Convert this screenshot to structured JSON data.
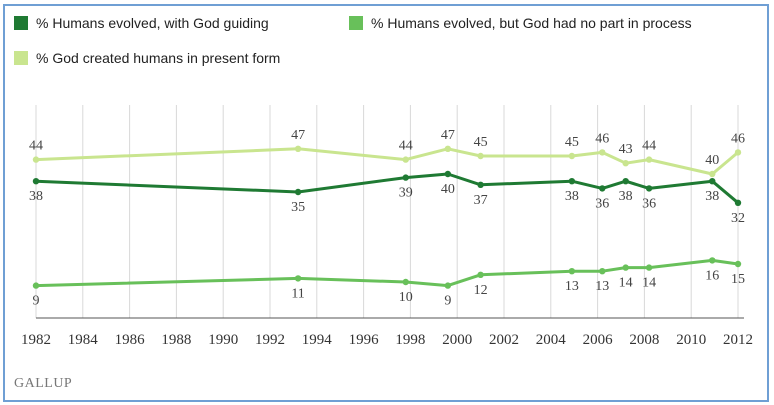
{
  "brand": "GALLUP",
  "colors": {
    "guided": "#1f7a33",
    "no_god": "#68c05a",
    "created": "#c9e58f",
    "grid": "#d8d8d8",
    "axis": "#555555"
  },
  "chart_data": {
    "type": "line",
    "x_ticks": [
      1982,
      1984,
      1986,
      1988,
      1990,
      1992,
      1994,
      1996,
      1998,
      2000,
      2002,
      2004,
      2006,
      2008,
      2010,
      2012
    ],
    "xlim": [
      1982,
      2012
    ],
    "ylim": [
      0,
      55
    ],
    "grid": "vertical",
    "legend_position": "top",
    "series": [
      {
        "name": "% Humans evolved, with God guiding",
        "color": "#1f7a33",
        "x": [
          1982,
          1993.2,
          1997.8,
          1999.6,
          2001,
          2004.9,
          2006.2,
          2007.2,
          2008.2,
          2010.9,
          2012
        ],
        "values": [
          38,
          35,
          39,
          40,
          37,
          38,
          36,
          38,
          36,
          38,
          32
        ],
        "labels": [
          "38",
          "35",
          "39",
          "40",
          "37",
          "38",
          "36",
          "38",
          "36",
          "38",
          "32"
        ],
        "label_pos": [
          "below",
          "below",
          "below",
          "below",
          "below",
          "below",
          "below",
          "below",
          "below",
          "below",
          "below"
        ]
      },
      {
        "name": "% Humans evolved, but God had no part in process",
        "color": "#68c05a",
        "x": [
          1982,
          1993.2,
          1997.8,
          1999.6,
          2001,
          2004.9,
          2006.2,
          2007.2,
          2008.2,
          2010.9,
          2012
        ],
        "values": [
          9,
          11,
          10,
          9,
          12,
          13,
          13,
          14,
          14,
          16,
          15
        ],
        "labels": [
          "9",
          "11",
          "10",
          "9",
          "12",
          "13",
          "13",
          "14",
          "14",
          "16",
          "15"
        ],
        "label_pos": [
          "below",
          "below",
          "below",
          "below",
          "below",
          "below",
          "below",
          "below",
          "below",
          "below",
          "below"
        ]
      },
      {
        "name": "% God created humans in present form",
        "color": "#c9e58f",
        "x": [
          1982,
          1993.2,
          1997.8,
          1999.6,
          2001,
          2004.9,
          2006.2,
          2007.2,
          2008.2,
          2010.9,
          2012
        ],
        "values": [
          44,
          47,
          44,
          47,
          45,
          45,
          46,
          43,
          44,
          40,
          46
        ],
        "labels": [
          "44",
          "47",
          "44",
          "47",
          "45",
          "45",
          "46",
          "43",
          "44",
          "40",
          "46"
        ],
        "label_pos": [
          "above",
          "above",
          "above",
          "above",
          "above",
          "above",
          "above",
          "above",
          "above",
          "above",
          "above"
        ]
      }
    ]
  }
}
